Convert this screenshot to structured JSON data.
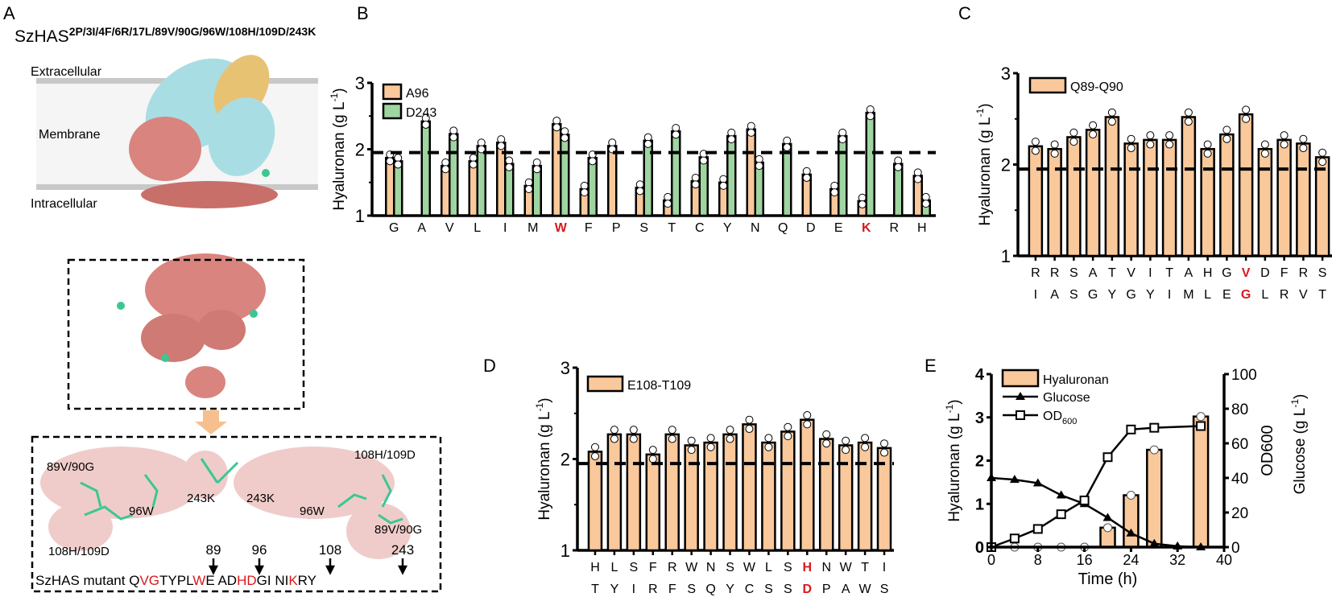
{
  "colors": {
    "orange": "#f9c89b",
    "green": "#9fd5a0",
    "red": "#d7191c",
    "axis": "#000000",
    "protein": "#d9847f",
    "helix_cyan": "#a8dde3",
    "helix_gold": "#e8c273",
    "residue": "#3cc792",
    "membrane": "#ebebeb",
    "arrow": "#f6c08e"
  },
  "panel_a": {
    "letter": "A",
    "title_main": "SzHAS",
    "title_sup": "2P/3I/4F/6R/17L/89V/90G/96W/108H/109D/243K",
    "extracellular": "Extracellular",
    "membrane": "Membrane",
    "intracellular": "Intracellular",
    "residues_left": [
      "89V/90G",
      "96W",
      "243K",
      "108H/109D"
    ],
    "residues_right": [
      "243K",
      "96W",
      "108H/109D",
      "89V/90G"
    ],
    "positions": [
      "89",
      "96",
      "108",
      "243"
    ],
    "seq_label": "SzHAS mutant",
    "seq": [
      {
        "t": "Q",
        "red": false
      },
      {
        "t": "VG",
        "red": true
      },
      {
        "t": "TYPL",
        "red": false
      },
      {
        "t": "W",
        "red": true
      },
      {
        "t": "E",
        "red": false
      },
      {
        "t": " AD",
        "red": false
      },
      {
        "t": "HD",
        "red": true
      },
      {
        "t": "GI",
        "red": false
      },
      {
        "t": " NI",
        "red": false
      },
      {
        "t": "K",
        "red": true
      },
      {
        "t": "RY",
        "red": false
      }
    ]
  },
  "chart_data": [
    {
      "panel": "B",
      "type": "bar",
      "ylabel": "Hyaluronan (g L-1)",
      "ylim": [
        1,
        3
      ],
      "yticks": [
        "1",
        "2",
        "3"
      ],
      "reference_line": 1.95,
      "categories": [
        "G",
        "A",
        "V",
        "L",
        "I",
        "M",
        "W",
        "F",
        "P",
        "S",
        "T",
        "C",
        "Y",
        "N",
        "Q",
        "D",
        "E",
        "K",
        "R",
        "H"
      ],
      "highlight": [
        "W",
        "K"
      ],
      "series": [
        {
          "name": "A96",
          "color": "#f9c89b",
          "values": [
            1.87,
            null,
            1.75,
            1.82,
            2.1,
            1.45,
            2.38,
            1.4,
            2.05,
            1.42,
            1.23,
            1.52,
            1.5,
            2.3,
            null,
            1.62,
            1.4,
            1.22,
            null,
            1.6
          ]
        },
        {
          "name": "D243",
          "color": "#9fd5a0",
          "values": [
            1.82,
            2.42,
            2.23,
            2.05,
            1.78,
            1.75,
            2.22,
            1.87,
            null,
            2.13,
            2.27,
            1.88,
            2.2,
            1.8,
            2.08,
            null,
            2.2,
            2.55,
            1.78,
            1.23
          ]
        }
      ],
      "legend": "top-left"
    },
    {
      "panel": "C",
      "type": "bar",
      "ylabel": "Hyaluronan (g L-1)",
      "ylim": [
        1,
        3
      ],
      "yticks": [
        "1",
        "2",
        "3"
      ],
      "reference_line": 1.95,
      "categories_top": [
        "R",
        "R",
        "S",
        "A",
        "T",
        "V",
        "I",
        "T",
        "A",
        "H",
        "G",
        "V",
        "D",
        "F",
        "R",
        "S"
      ],
      "categories_bottom": [
        "I",
        "A",
        "S",
        "G",
        "Y",
        "G",
        "Y",
        "I",
        "M",
        "L",
        "E",
        "G",
        "L",
        "R",
        "V",
        "T"
      ],
      "highlight_index": 11,
      "series": [
        {
          "name": "Q89-Q90",
          "color": "#f9c89b",
          "values": [
            2.2,
            2.17,
            2.3,
            2.38,
            2.52,
            2.23,
            2.27,
            2.27,
            2.52,
            2.17,
            2.33,
            2.55,
            2.17,
            2.27,
            2.23,
            2.08
          ]
        }
      ],
      "legend": "top-left"
    },
    {
      "panel": "D",
      "type": "bar",
      "ylabel": "Hyaluronan (g L-1)",
      "ylim": [
        1,
        3
      ],
      "yticks": [
        "1",
        "2",
        "3"
      ],
      "reference_line": 1.95,
      "categories_top": [
        "H",
        "L",
        "S",
        "F",
        "R",
        "W",
        "N",
        "S",
        "W",
        "L",
        "S",
        "H",
        "N",
        "W",
        "T",
        "I"
      ],
      "categories_bottom": [
        "T",
        "Y",
        "I",
        "R",
        "F",
        "S",
        "Q",
        "Y",
        "C",
        "S",
        "S",
        "D",
        "P",
        "A",
        "W",
        "S"
      ],
      "highlight_index": 11,
      "series": [
        {
          "name": "E108-T109",
          "color": "#f9c89b",
          "values": [
            2.08,
            2.27,
            2.27,
            2.05,
            2.27,
            2.15,
            2.18,
            2.27,
            2.38,
            2.18,
            2.3,
            2.43,
            2.22,
            2.15,
            2.18,
            2.12
          ]
        }
      ],
      "legend": "top-left"
    },
    {
      "panel": "E",
      "type": "bar+line",
      "xlabel": "Time (h)",
      "ylabel_left": "Hyaluronan (g L-1)",
      "ylabel_right_1": "OD600",
      "ylabel_right_2": "Glucose (g L-1)",
      "xlim": [
        0,
        40
      ],
      "xticks": [
        "0",
        "8",
        "16",
        "24",
        "32",
        "40"
      ],
      "ylim_left": [
        0,
        4
      ],
      "yticks_left": [
        "0",
        "1",
        "2",
        "3",
        "4"
      ],
      "ylim_right": [
        0,
        100
      ],
      "yticks_right": [
        "0",
        "20",
        "40",
        "60",
        "80",
        "100"
      ],
      "hyaluronan": {
        "name": "Hyaluronan",
        "x": [
          0,
          4,
          8,
          12,
          16,
          20,
          24,
          28,
          36
        ],
        "values": [
          0,
          0,
          0,
          0,
          0,
          0.45,
          1.2,
          2.25,
          3.02
        ]
      },
      "glucose": {
        "name": "Glucose",
        "x": [
          0,
          4,
          8,
          12,
          16,
          20,
          24,
          28,
          32,
          36
        ],
        "values": [
          40,
          39,
          37,
          30,
          25,
          17,
          8,
          2,
          0.5,
          0
        ]
      },
      "od600": {
        "name": "OD600",
        "x": [
          0,
          4,
          8,
          12,
          16,
          20,
          24,
          28,
          36
        ],
        "values": [
          0,
          5,
          10.5,
          19,
          27,
          52,
          68,
          69,
          70
        ]
      },
      "legend": "top-left"
    }
  ],
  "panel_letters": {
    "b": "B",
    "c": "C",
    "d": "D",
    "e": "E"
  }
}
